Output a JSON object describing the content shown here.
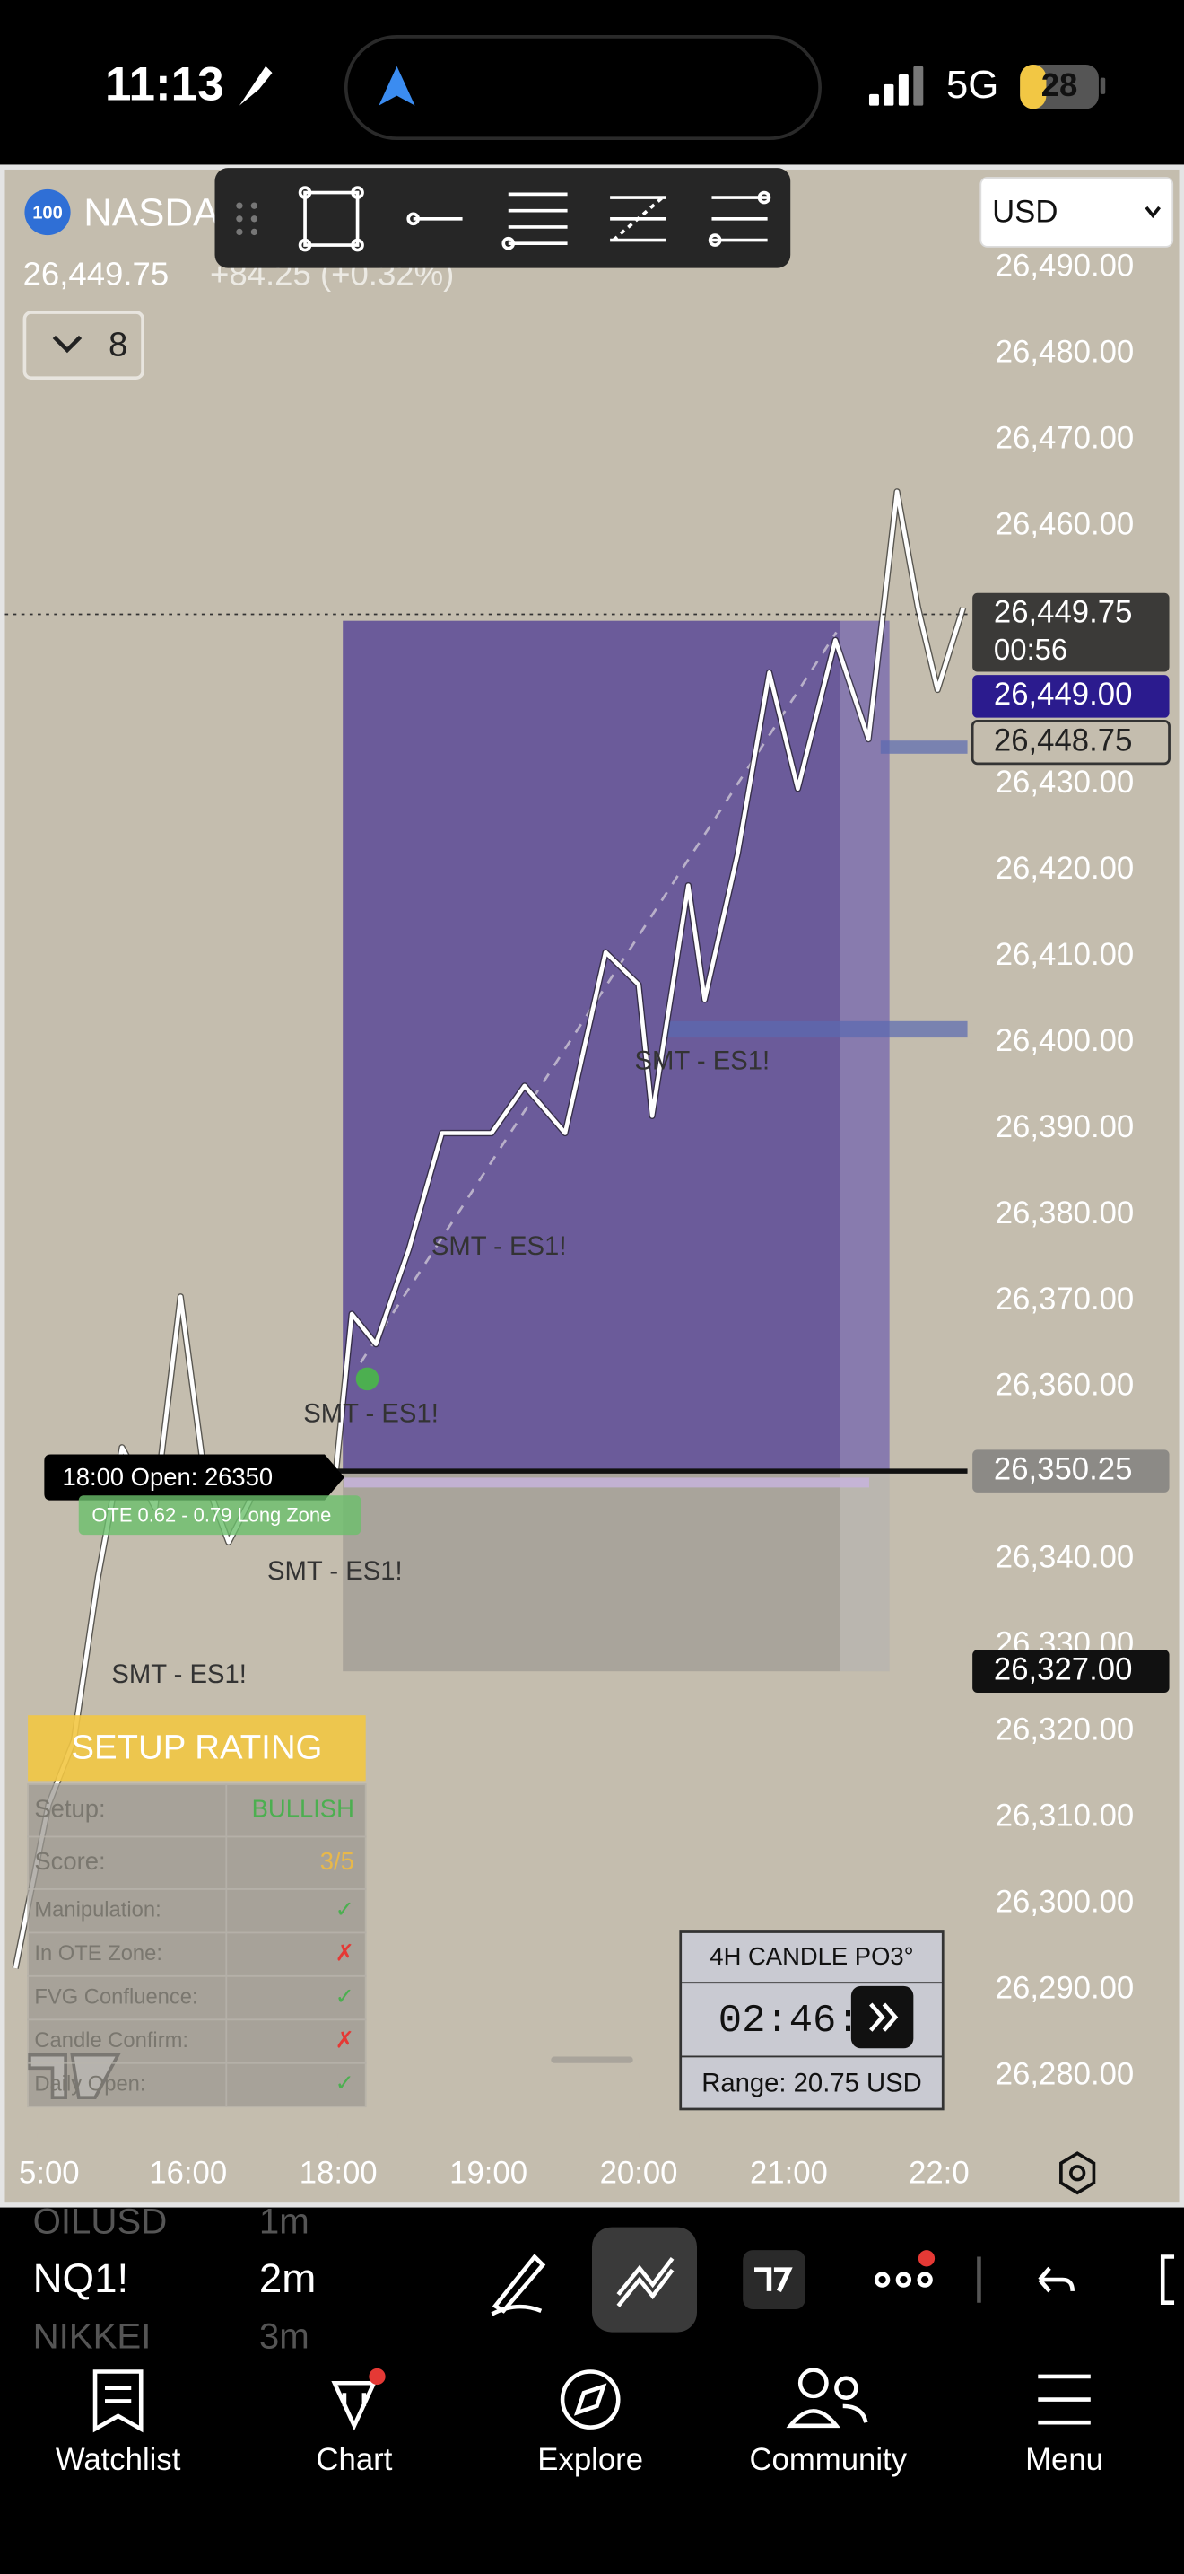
{
  "status_bar": {
    "time": "11:13",
    "network": "5G",
    "battery": "28"
  },
  "symbol": {
    "badge": "100",
    "name": "NASDA",
    "quote": "26,449.75",
    "change": "+84.25 (+0.32%)",
    "indicator_count": "8"
  },
  "currency": "USD",
  "chart_data": {
    "type": "line",
    "x": [
      14.85,
      15.07,
      15.24,
      15.4,
      15.56,
      15.78,
      15.95,
      16.11,
      16.27,
      16.49,
      16.82,
      16.98,
      18.09,
      18.25,
      18.47,
      18.69,
      19.02,
      19.24,
      19.51,
      19.78,
      20.0,
      20.09,
      20.33,
      20.44,
      20.66,
      20.87,
      21.06,
      21.31,
      21.53,
      21.72,
      21.86,
      21.99,
      22.16
    ],
    "values": [
      26292.5,
      26311.5,
      26319,
      26338,
      26353,
      26346,
      26370.5,
      26349.5,
      26342,
      26349.5,
      26351.5,
      26349.5,
      26368.5,
      26365,
      26376,
      26389.5,
      26389.5,
      26395,
      26389.5,
      26410.5,
      26406.75,
      26391.5,
      26418.25,
      26405,
      26422,
      26443,
      26429.5,
      26446.75,
      26435.25,
      26464,
      26450.5,
      26441,
      26450.5
    ],
    "color": "#ffffff",
    "xlim": [
      14.78,
      22.19
    ],
    "xticks": [
      {
        "value": 15,
        "label": "5:00"
      },
      {
        "value": 16,
        "label": "16:00"
      },
      {
        "value": 18,
        "label": "18:00"
      },
      {
        "value": 19,
        "label": "19:00"
      },
      {
        "value": 20,
        "label": "20:00"
      },
      {
        "value": 21,
        "label": "21:00"
      },
      {
        "value": 22,
        "label": "22:0"
      }
    ],
    "ylim": [
      26273.3,
      26501.4
    ],
    "yticks": [
      {
        "value": 26280,
        "label": "26,280.00"
      },
      {
        "value": 26290,
        "label": "26,290.00"
      },
      {
        "value": 26300,
        "label": "26,300.00"
      },
      {
        "value": 26310,
        "label": "26,310.00"
      },
      {
        "value": 26320,
        "label": "26,320.00"
      },
      {
        "value": 26330,
        "label": "26,330.00"
      },
      {
        "value": 26340,
        "label": "26,340.00"
      },
      {
        "value": 26350,
        "label": "26,350.00"
      },
      {
        "value": 26360,
        "label": "26,360.00"
      },
      {
        "value": 26370,
        "label": "26,370.00"
      },
      {
        "value": 26380,
        "label": "26,380.00"
      },
      {
        "value": 26390,
        "label": "26,390.00"
      },
      {
        "value": 26400,
        "label": "26,400.00"
      },
      {
        "value": 26410,
        "label": "26,410.00"
      },
      {
        "value": 26420,
        "label": "26,420.00"
      },
      {
        "value": 26430,
        "label": "26,430.00"
      },
      {
        "value": 26440,
        "label": "26,440.00"
      },
      {
        "value": 26450,
        "label": "26,450.00"
      },
      {
        "value": 26460,
        "label": "26,460.00"
      },
      {
        "value": 26470,
        "label": "26,470.00"
      },
      {
        "value": 26480,
        "label": "26,480.00"
      },
      {
        "value": 26490,
        "label": "26,490.00"
      }
    ],
    "grid": false,
    "price_tags": [
      {
        "value": 26449.75,
        "label": "26,449.75",
        "countdown": "00:56",
        "color": "#3b3a38"
      },
      {
        "value": 26449,
        "label": "26,449.00",
        "color": "#2b1b8e"
      },
      {
        "value": 26448.75,
        "label": "26,448.75",
        "color": "#c4bdae"
      },
      {
        "value": 26350.25,
        "label": "26,350.25",
        "color": "#8c8a86"
      },
      {
        "value": 26327,
        "label": "26,327.00",
        "color": "#111111"
      }
    ],
    "position": {
      "entry": 26350.25,
      "target": 26449,
      "stop": 26327,
      "start": 18.03,
      "end": 21.67
    },
    "annotations": [
      "SMT - ES1!",
      "SMT - ES1!",
      "SMT - ES1!",
      "SMT - ES1!",
      "SMT - ES1!"
    ],
    "session_label": "18:00 Open: 26350",
    "zone_label": "OTE 0.62 - 0.79 Long Zone"
  },
  "setup_rating": {
    "title": "SETUP RATING",
    "rows": [
      {
        "label": "Setup:",
        "value": "BULLISH",
        "color": "#4caf50"
      },
      {
        "label": "Score:",
        "value": "3/5",
        "color": "#e8b84a"
      },
      {
        "label": "Manipulation:",
        "value": "✓",
        "color": "#4caf50"
      },
      {
        "label": "In OTE Zone:",
        "value": "✗",
        "color": "#e53935"
      },
      {
        "label": "FVG Confluence:",
        "value": "✓",
        "color": "#4caf50"
      },
      {
        "label": "Candle Confirm:",
        "value": "✗",
        "color": "#e53935"
      },
      {
        "label": "Daily Open:",
        "value": "✓",
        "color": "#4caf50"
      }
    ]
  },
  "candle_panel": {
    "title": "4H CANDLE PO3°",
    "timer": "02:46:",
    "range": "Range: 20.75 USD"
  },
  "symbol_bar": [
    {
      "symbol": "OILUSD",
      "interval": "1m"
    },
    {
      "symbol": "NQ1!",
      "interval": "2m"
    },
    {
      "symbol": "NIKKEI",
      "interval": "3m"
    }
  ],
  "tab_bar": [
    "Watchlist",
    "Chart",
    "Explore",
    "Community",
    "Menu"
  ]
}
